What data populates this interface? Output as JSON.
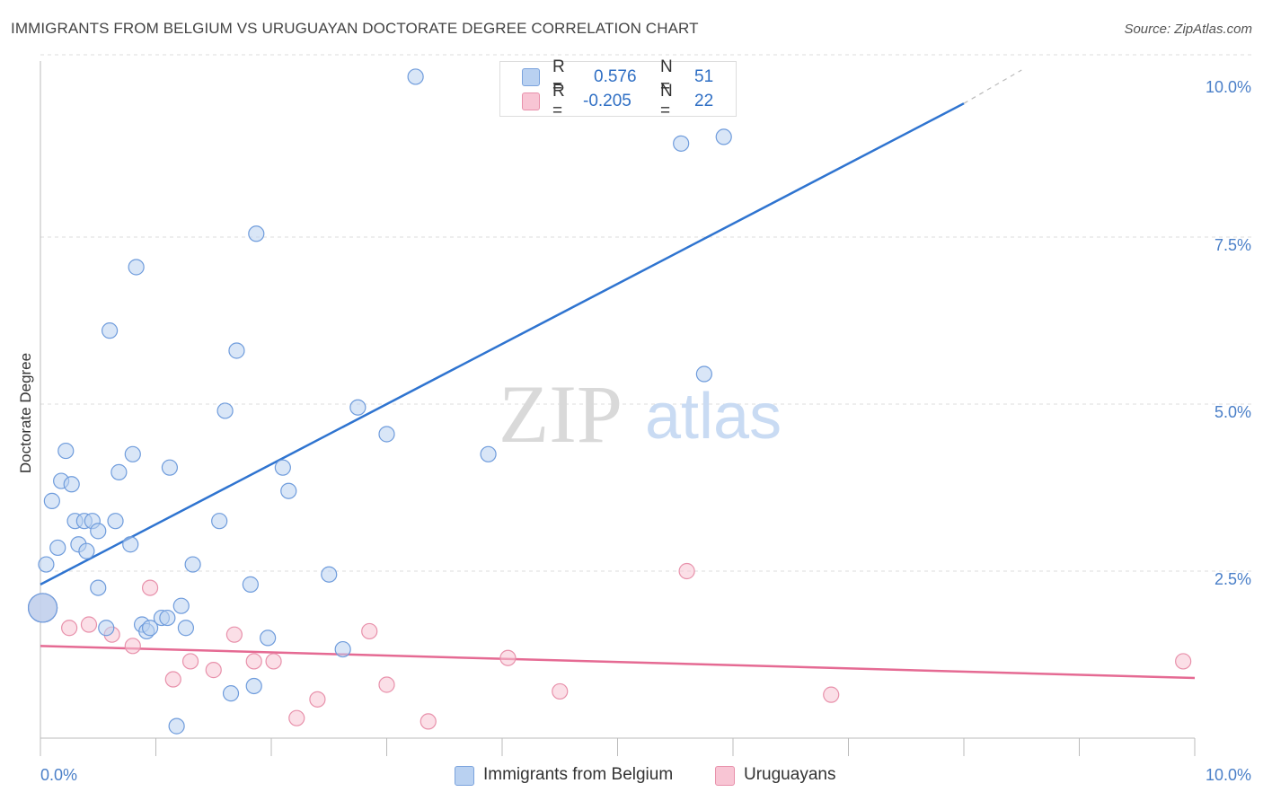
{
  "title": "IMMIGRANTS FROM BELGIUM VS URUGUAYAN DOCTORATE DEGREE CORRELATION CHART",
  "source": "Source: ZipAtlas.com",
  "watermark": {
    "zip": "ZIP",
    "atlas": "atlas"
  },
  "legend": {
    "rows": [
      {
        "r_label": "R =",
        "r_value": "0.576",
        "n_label": "N =",
        "n_value": "51",
        "color": "#b9d1f1",
        "border": "#7ba3dd"
      },
      {
        "r_label": "R =",
        "r_value": "-0.205",
        "n_label": "N =",
        "n_value": "22",
        "color": "#f8c5d4",
        "border": "#e891ab"
      }
    ]
  },
  "bottom_legend": [
    {
      "label": "Immigrants from Belgium",
      "color": "#b9d1f1",
      "border": "#7ba3dd"
    },
    {
      "label": "Uruguayans",
      "color": "#f8c5d4",
      "border": "#e891ab"
    }
  ],
  "chart_data": {
    "type": "scatter",
    "title": "IMMIGRANTS FROM BELGIUM VS URUGUAYAN DOCTORATE DEGREE CORRELATION CHART",
    "xlabel": "",
    "ylabel": "Doctorate Degree",
    "xlim": [
      0,
      10
    ],
    "ylim": [
      0,
      10
    ],
    "x_tick_labels": [
      "0.0%",
      "10.0%"
    ],
    "y_ticks": [
      2.5,
      5.0,
      7.5,
      10.0
    ],
    "y_tick_labels": [
      "2.5%",
      "5.0%",
      "7.5%",
      "10.0%"
    ],
    "grid": true,
    "legend_position": "top-center",
    "series": [
      {
        "name": "Immigrants from Belgium",
        "color": "#b9d1f1",
        "stroke": "#6f9cdc",
        "line_color": "#2f74d0",
        "trend": {
          "x0": 0,
          "y0": 2.3,
          "x1": 8.0,
          "y1": 9.5,
          "dash_to_x": 8.5,
          "dash_to_y": 10.0
        },
        "points": [
          [
            0.05,
            2.6
          ],
          [
            0.1,
            3.55
          ],
          [
            0.15,
            2.85
          ],
          [
            0.18,
            3.85
          ],
          [
            0.22,
            4.3
          ],
          [
            0.27,
            3.8
          ],
          [
            0.3,
            3.25
          ],
          [
            0.33,
            2.9
          ],
          [
            0.38,
            3.25
          ],
          [
            0.4,
            2.8
          ],
          [
            0.45,
            3.25
          ],
          [
            0.5,
            3.1
          ],
          [
            0.5,
            2.25
          ],
          [
            0.57,
            1.65
          ],
          [
            0.6,
            6.1
          ],
          [
            0.65,
            3.25
          ],
          [
            0.68,
            3.98
          ],
          [
            0.78,
            2.9
          ],
          [
            0.8,
            4.25
          ],
          [
            0.83,
            7.05
          ],
          [
            0.88,
            1.7
          ],
          [
            0.92,
            1.6
          ],
          [
            0.95,
            1.65
          ],
          [
            1.05,
            1.8
          ],
          [
            1.1,
            1.8
          ],
          [
            1.12,
            4.05
          ],
          [
            1.18,
            0.18
          ],
          [
            1.22,
            1.98
          ],
          [
            1.26,
            1.65
          ],
          [
            1.32,
            2.6
          ],
          [
            1.55,
            3.25
          ],
          [
            1.6,
            4.9
          ],
          [
            1.65,
            0.67
          ],
          [
            1.7,
            5.8
          ],
          [
            1.82,
            2.3
          ],
          [
            1.85,
            0.78
          ],
          [
            1.87,
            7.55
          ],
          [
            1.97,
            1.5
          ],
          [
            2.1,
            4.05
          ],
          [
            2.15,
            3.7
          ],
          [
            2.5,
            2.45
          ],
          [
            2.62,
            1.33
          ],
          [
            2.75,
            4.95
          ],
          [
            3.0,
            4.55
          ],
          [
            3.25,
            9.9
          ],
          [
            3.88,
            4.25
          ],
          [
            5.55,
            8.9
          ],
          [
            5.92,
            9.0
          ],
          [
            5.75,
            5.45
          ],
          [
            0.02,
            1.95
          ],
          [
            0.02,
            1.95
          ]
        ]
      },
      {
        "name": "Uruguayans",
        "color": "#f8c5d4",
        "stroke": "#e891ab",
        "line_color": "#e56a93",
        "trend": {
          "x0": 0,
          "y0": 1.38,
          "x1": 10.0,
          "y1": 0.9
        },
        "points": [
          [
            0.02,
            1.95
          ],
          [
            0.25,
            1.65
          ],
          [
            0.42,
            1.7
          ],
          [
            0.62,
            1.55
          ],
          [
            0.8,
            1.38
          ],
          [
            0.95,
            2.25
          ],
          [
            1.15,
            0.88
          ],
          [
            1.3,
            1.15
          ],
          [
            1.5,
            1.02
          ],
          [
            1.68,
            1.55
          ],
          [
            1.85,
            1.15
          ],
          [
            2.02,
            1.15
          ],
          [
            2.22,
            0.3
          ],
          [
            2.4,
            0.58
          ],
          [
            2.85,
            1.6
          ],
          [
            3.0,
            0.8
          ],
          [
            3.36,
            0.25
          ],
          [
            4.05,
            1.2
          ],
          [
            4.5,
            0.7
          ],
          [
            5.6,
            2.5
          ],
          [
            6.85,
            0.65
          ],
          [
            9.9,
            1.15
          ]
        ]
      }
    ]
  }
}
